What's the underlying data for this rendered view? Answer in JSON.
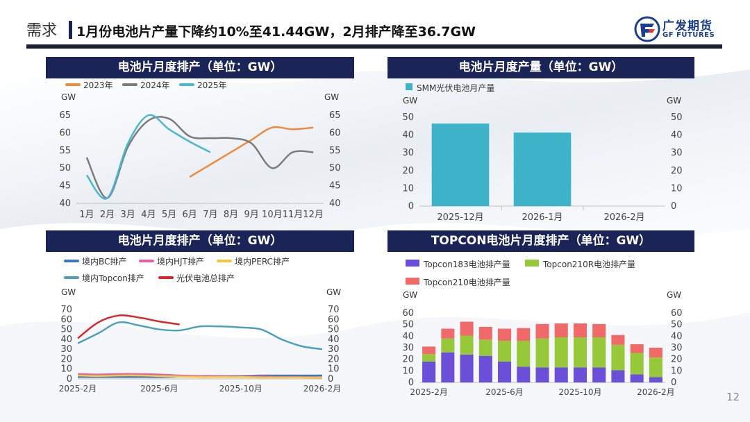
{
  "header": {
    "section": "需求",
    "title": "1月份电池片产量下降约10%至41.44GW，2月排产降至36.7GW"
  },
  "logo": {
    "name_cn": "广发期货",
    "name_en": "GF FUTURES",
    "color": "#1a3f8f",
    "accent": "#e8352e"
  },
  "page_number": "12",
  "charts": [
    {
      "title": "电池片月度排产（单位：GW）",
      "unit_left": "GW",
      "unit_right": "GW",
      "legend": [
        {
          "label": "2023年",
          "color": "#ef8a3c"
        },
        {
          "label": "2024年",
          "color": "#7b7b7b"
        },
        {
          "label": "2025年",
          "color": "#4cb6cf"
        }
      ]
    },
    {
      "title": "电池片月度产量（单位：GW）",
      "unit_left": "GW",
      "unit_right": "GW",
      "legend": [
        {
          "label": "SMM光伏电池月产量",
          "color": "#3eb2c9"
        }
      ]
    },
    {
      "title": "电池片月度排产（单位：GW）",
      "unit_left": "GW",
      "unit_right": "GW",
      "legend": [
        {
          "label": "境内BC排产",
          "color": "#3b78c3"
        },
        {
          "label": "境内HJT排产",
          "color": "#e85fa6"
        },
        {
          "label": "境内PERC排产",
          "color": "#f0c93c"
        },
        {
          "label": "境内Topcon排产",
          "color": "#4aa0bd"
        },
        {
          "label": "光伏电池总排产",
          "color": "#d9262a"
        }
      ]
    },
    {
      "title": "TOPCON电池片月度排产（单位：GW）",
      "unit_left": "GW",
      "unit_right": "GW",
      "legend": [
        {
          "label": "Topcon183电池排产量",
          "color": "#6b4fd8"
        },
        {
          "label": "Topcon210R电池排产量",
          "color": "#97c83a"
        },
        {
          "label": "Topcon210电池排产量",
          "color": "#f06a6a"
        }
      ]
    }
  ],
  "chart_data": [
    {
      "type": "line",
      "categories": [
        "1月",
        "2月",
        "3月",
        "4月",
        "5月",
        "6月",
        "7月",
        "8月",
        "9月",
        "10月",
        "11月",
        "12月"
      ],
      "ylim": [
        40,
        65
      ],
      "yticks": [
        40,
        45,
        50,
        55,
        60,
        65
      ],
      "series": [
        {
          "name": "2023年",
          "color": "#ef8a3c",
          "values": [
            null,
            null,
            null,
            null,
            null,
            47.5,
            51,
            54.5,
            58,
            61.5,
            61,
            61.5
          ]
        },
        {
          "name": "2024年",
          "color": "#7b7b7b",
          "values": [
            53,
            41.5,
            56,
            63.5,
            64,
            59,
            58.5,
            58.5,
            57,
            50,
            54.5,
            54.5
          ]
        },
        {
          "name": "2025年",
          "color": "#4cb6cf",
          "values": [
            48,
            41.5,
            57,
            65,
            61,
            57.5,
            54.5,
            null,
            null,
            null,
            null,
            null
          ]
        }
      ]
    },
    {
      "type": "bar",
      "categories": [
        "2025-12月",
        "2026-1月",
        "2026-2月"
      ],
      "ylim": [
        0,
        50
      ],
      "yticks": [
        0,
        10,
        20,
        30,
        40,
        50
      ],
      "series": [
        {
          "name": "SMM光伏电池月产量",
          "color": "#3eb2c9",
          "values": [
            46.5,
            41.44,
            null
          ]
        }
      ]
    },
    {
      "type": "line",
      "x": [
        "2025-2月",
        "2025-3月",
        "2025-4月",
        "2025-5月",
        "2025-6月",
        "2025-7月",
        "2025-8月",
        "2025-9月",
        "2025-10月",
        "2025-11月",
        "2025-12月",
        "2026-1月",
        "2026-2月"
      ],
      "xtick_labels": [
        "2025-2月",
        "2025-6月",
        "2025-10月",
        "2026-2月"
      ],
      "ylim": [
        0,
        70
      ],
      "yticks": [
        0,
        10,
        20,
        30,
        40,
        50,
        60,
        70
      ],
      "series": [
        {
          "name": "境内BC排产",
          "color": "#3b78c3",
          "values": [
            2,
            2,
            2,
            2,
            2,
            2.5,
            3,
            3,
            3,
            3.5,
            3.5,
            3.5,
            3.5
          ]
        },
        {
          "name": "境内HJT排产",
          "color": "#e85fa6",
          "values": [
            5,
            4.5,
            5,
            5,
            4.5,
            3.5,
            3,
            3,
            2.5,
            2.5,
            2,
            2,
            1.5
          ]
        },
        {
          "name": "境内PERC排产",
          "color": "#f0c93c",
          "values": [
            3.5,
            3,
            3.5,
            3.5,
            3,
            2.5,
            2,
            2,
            2,
            1.5,
            1.5,
            1.5,
            1
          ]
        },
        {
          "name": "境内Topcon排产",
          "color": "#4aa0bd",
          "values": [
            36,
            46,
            57,
            54,
            50,
            49,
            53,
            53,
            52,
            50,
            40,
            33,
            30
          ]
        },
        {
          "name": "光伏电池总排产",
          "color": "#d9262a",
          "values": [
            41,
            57,
            64,
            62,
            58,
            55,
            null,
            null,
            null,
            null,
            null,
            null,
            null
          ]
        }
      ]
    },
    {
      "type": "bar",
      "stacked": true,
      "x": [
        "2025-2月",
        "2025-3月",
        "2025-4月",
        "2025-5月",
        "2025-6月",
        "2025-7月",
        "2025-8月",
        "2025-9月",
        "2025-10月",
        "2025-11月",
        "2025-12月",
        "2026-1月",
        "2026-2月"
      ],
      "xtick_labels": [
        "2025-2月",
        "2025-6月",
        "2025-10月",
        "2026-2月"
      ],
      "ylim": [
        0,
        60
      ],
      "yticks": [
        0,
        10,
        20,
        30,
        40,
        50,
        60
      ],
      "series": [
        {
          "name": "Topcon183电池排产量",
          "color": "#6b4fd8",
          "values": [
            18,
            26,
            24,
            23,
            18,
            13.5,
            13,
            13,
            13,
            13,
            10.5,
            7,
            4.5
          ]
        },
        {
          "name": "Topcon210R电池排产量",
          "color": "#97c83a",
          "values": [
            6.5,
            12,
            16.5,
            14,
            18,
            22.5,
            25,
            26,
            26,
            26,
            22,
            18.5,
            17
          ]
        },
        {
          "name": "Topcon210电池排产量",
          "color": "#f06a6a",
          "values": [
            6.5,
            8.5,
            12,
            11,
            10.5,
            11,
            12.5,
            12,
            12,
            11.5,
            8.5,
            7.5,
            8.5
          ]
        }
      ]
    }
  ]
}
